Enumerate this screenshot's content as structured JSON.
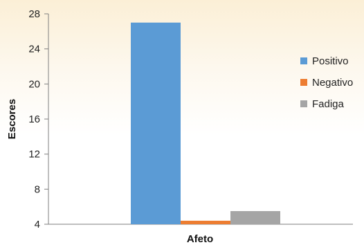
{
  "chart_data": {
    "type": "bar",
    "categories": [
      "Afeto"
    ],
    "series": [
      {
        "name": "Positivo",
        "values": [
          27
        ],
        "color": "#5b9bd5"
      },
      {
        "name": "Negativo",
        "values": [
          4.4
        ],
        "color": "#ed7d31"
      },
      {
        "name": "Fadiga",
        "values": [
          5.5
        ],
        "color": "#a5a5a5"
      }
    ],
    "title": "",
    "xlabel": "Afeto",
    "ylabel": "Escores",
    "ylim": [
      4,
      28
    ],
    "yticks": [
      "4",
      "8",
      "12",
      "16",
      "20",
      "24",
      "28"
    ],
    "grid": false,
    "legend_position": "right"
  }
}
